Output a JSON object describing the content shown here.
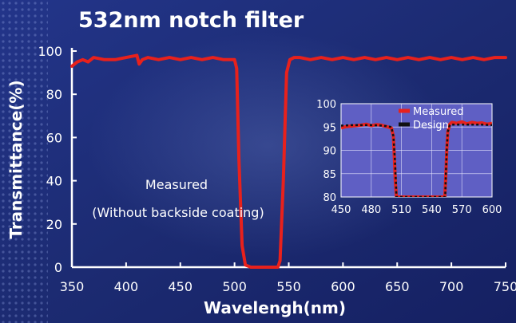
{
  "chart_data": [
    {
      "type": "line",
      "title": "532nm notch filter",
      "xlabel": "Wavelengh(nm)",
      "ylabel": "Transmittance(%)",
      "xlim": [
        350,
        750
      ],
      "ylim": [
        0,
        100
      ],
      "xticks": [
        350,
        400,
        450,
        500,
        550,
        600,
        650,
        700,
        750
      ],
      "yticks": [
        0,
        20,
        40,
        60,
        80,
        100
      ],
      "grid": false,
      "annotation": [
        "Measured",
        "(Without backside coating)"
      ],
      "series": [
        {
          "name": "Measured",
          "color": "#e8211c",
          "x": [
            350,
            355,
            360,
            365,
            370,
            380,
            390,
            400,
            410,
            412,
            415,
            420,
            430,
            440,
            450,
            460,
            470,
            480,
            490,
            500,
            502,
            504,
            507,
            510,
            515,
            520,
            525,
            530,
            535,
            540,
            542,
            545,
            548,
            551,
            555,
            560,
            570,
            580,
            590,
            600,
            610,
            620,
            630,
            640,
            650,
            660,
            670,
            680,
            690,
            700,
            710,
            720,
            730,
            740,
            750
          ],
          "y": [
            93,
            95,
            96,
            95,
            97,
            96,
            96,
            97,
            98,
            94,
            96,
            97,
            96,
            97,
            96,
            97,
            96,
            97,
            96,
            96,
            92,
            50,
            10,
            1,
            0,
            0,
            0,
            0,
            0,
            0,
            3,
            40,
            90,
            96,
            97,
            97,
            96,
            97,
            96,
            97,
            96,
            97,
            96,
            97,
            96,
            97,
            96,
            97,
            96,
            97,
            96,
            97,
            96,
            97,
            97
          ]
        }
      ]
    },
    {
      "type": "line",
      "xlim": [
        450,
        600
      ],
      "ylim": [
        80,
        100
      ],
      "xticks": [
        450,
        480,
        510,
        540,
        570,
        600
      ],
      "xtick_labels": [
        "450",
        "480",
        "510",
        "540",
        "570",
        "600"
      ],
      "yticks": [
        80,
        85,
        90,
        95,
        100
      ],
      "grid": true,
      "legend": "top-right",
      "series": [
        {
          "name": "Measured",
          "color": "#e8211c",
          "x": [
            450,
            455,
            460,
            465,
            470,
            475,
            480,
            485,
            490,
            495,
            500,
            502,
            503,
            504,
            505,
            553,
            554,
            555,
            556,
            558,
            560,
            565,
            570,
            575,
            580,
            585,
            590,
            595,
            600
          ],
          "y": [
            94.8,
            95.1,
            95.2,
            95.3,
            95.4,
            95.6,
            95.3,
            95.5,
            95.4,
            95.1,
            94.8,
            93,
            88,
            83,
            80,
            80,
            84,
            90,
            94,
            95.6,
            96,
            95.8,
            96.1,
            95.7,
            96,
            95.8,
            95.9,
            95.6,
            95.8
          ]
        },
        {
          "name": "Design",
          "color": "#111111",
          "x": [
            450,
            460,
            470,
            480,
            490,
            495,
            500,
            502,
            503.5,
            504.5,
            505,
            553.5,
            554,
            555,
            556,
            558,
            560,
            570,
            580,
            590,
            600
          ],
          "y": [
            95.3,
            95.4,
            95.4,
            95.4,
            95.3,
            95.2,
            95.0,
            93,
            88,
            83,
            80,
            80,
            84,
            90,
            94,
            95.4,
            95.5,
            95.5,
            95.5,
            95.5,
            95.4
          ]
        }
      ]
    }
  ]
}
